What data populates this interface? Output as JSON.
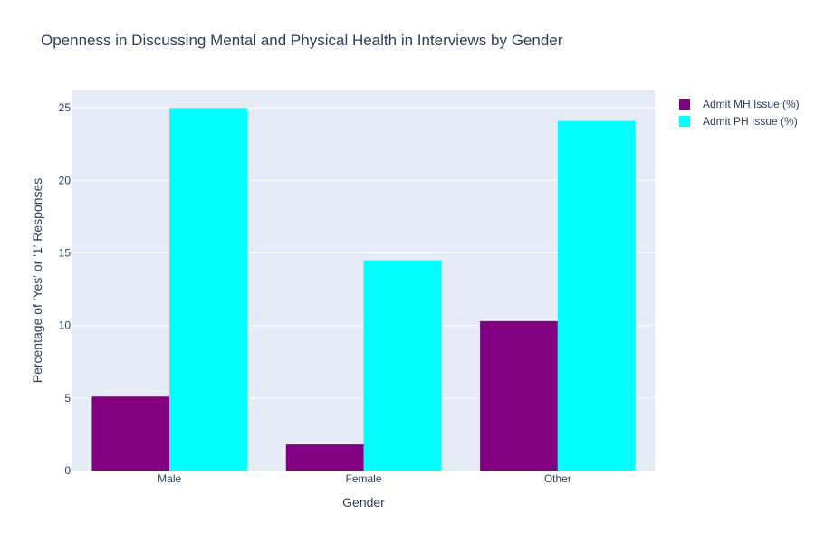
{
  "chart_data": {
    "type": "bar",
    "title": "Openness in Discussing Mental and Physical Health in Interviews by Gender",
    "xlabel": "Gender",
    "ylabel": "Percentage of 'Yes' or '1' Responses",
    "categories": [
      "Male",
      "Female",
      "Other"
    ],
    "series": [
      {
        "name": "Admit MH Issue (%)",
        "values": [
          5.1,
          1.8,
          10.3
        ],
        "color": "#800080"
      },
      {
        "name": "Admit PH Issue (%)",
        "values": [
          25.0,
          14.5,
          24.1
        ],
        "color": "#00FFFF"
      }
    ],
    "ylim": [
      0,
      26.2
    ],
    "yticks": [
      0,
      5,
      10,
      15,
      20,
      25
    ],
    "grid": true,
    "legend_position": "top-right",
    "plot_background": "#E5ECF6",
    "text_color": "#2A3F5F"
  }
}
